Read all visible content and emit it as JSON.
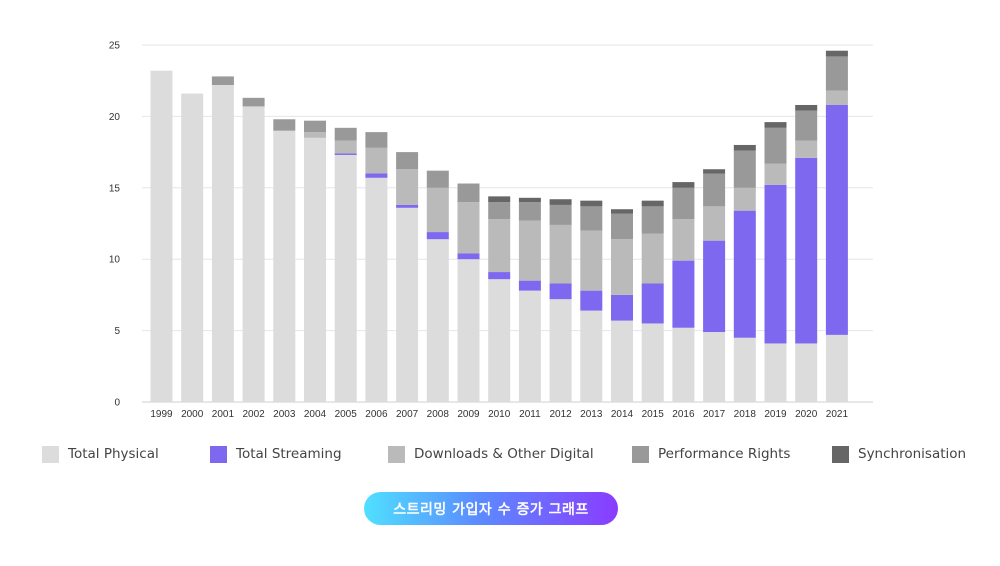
{
  "chart_data": {
    "type": "bar",
    "stacked": true,
    "categories": [
      "1999",
      "2000",
      "2001",
      "2002",
      "2003",
      "2004",
      "2005",
      "2006",
      "2007",
      "2008",
      "2009",
      "2010",
      "2011",
      "2012",
      "2013",
      "2014",
      "2015",
      "2016",
      "2017",
      "2018",
      "2019",
      "2020",
      "2021"
    ],
    "series": [
      {
        "name": "Total Physical",
        "color": "#dcdcdc",
        "values": [
          23.2,
          21.6,
          22.2,
          20.7,
          19.0,
          18.5,
          17.3,
          15.7,
          13.6,
          11.4,
          10.0,
          8.6,
          7.8,
          7.2,
          6.4,
          5.7,
          5.5,
          5.2,
          4.9,
          4.5,
          4.1,
          4.1,
          4.7
        ]
      },
      {
        "name": "Total Streaming",
        "color": "#7f68f0",
        "values": [
          0,
          0,
          0,
          0,
          0,
          0,
          0.1,
          0.3,
          0.2,
          0.5,
          0.4,
          0.5,
          0.7,
          1.1,
          1.4,
          1.8,
          2.8,
          4.7,
          6.4,
          8.9,
          11.1,
          13.0,
          16.1
        ]
      },
      {
        "name": "Downloads & Other Digital",
        "color": "#bababa",
        "values": [
          0,
          0,
          0,
          0,
          0,
          0.4,
          0.9,
          1.8,
          2.5,
          3.1,
          3.6,
          3.7,
          4.2,
          4.1,
          4.2,
          3.9,
          3.5,
          2.9,
          2.4,
          1.6,
          1.5,
          1.2,
          1.0
        ]
      },
      {
        "name": "Performance Rights",
        "color": "#999999",
        "values": [
          0,
          0,
          0.6,
          0.6,
          0.8,
          0.8,
          0.9,
          1.1,
          1.2,
          1.2,
          1.3,
          1.2,
          1.3,
          1.4,
          1.7,
          1.8,
          1.9,
          2.2,
          2.3,
          2.6,
          2.5,
          2.1,
          2.4
        ]
      },
      {
        "name": "Synchronisation",
        "color": "#666666",
        "values": [
          0,
          0,
          0,
          0,
          0,
          0,
          0,
          0,
          0,
          0,
          0,
          0.4,
          0.3,
          0.4,
          0.4,
          0.3,
          0.4,
          0.4,
          0.3,
          0.4,
          0.4,
          0.4,
          0.4
        ]
      }
    ],
    "ylim": [
      0,
      25
    ],
    "yticks": [
      0,
      5,
      10,
      15,
      20,
      25
    ],
    "grid": true,
    "legend_position": "bottom"
  },
  "caption": {
    "label": "스트리밍 가입자 수 증가 그래프"
  }
}
